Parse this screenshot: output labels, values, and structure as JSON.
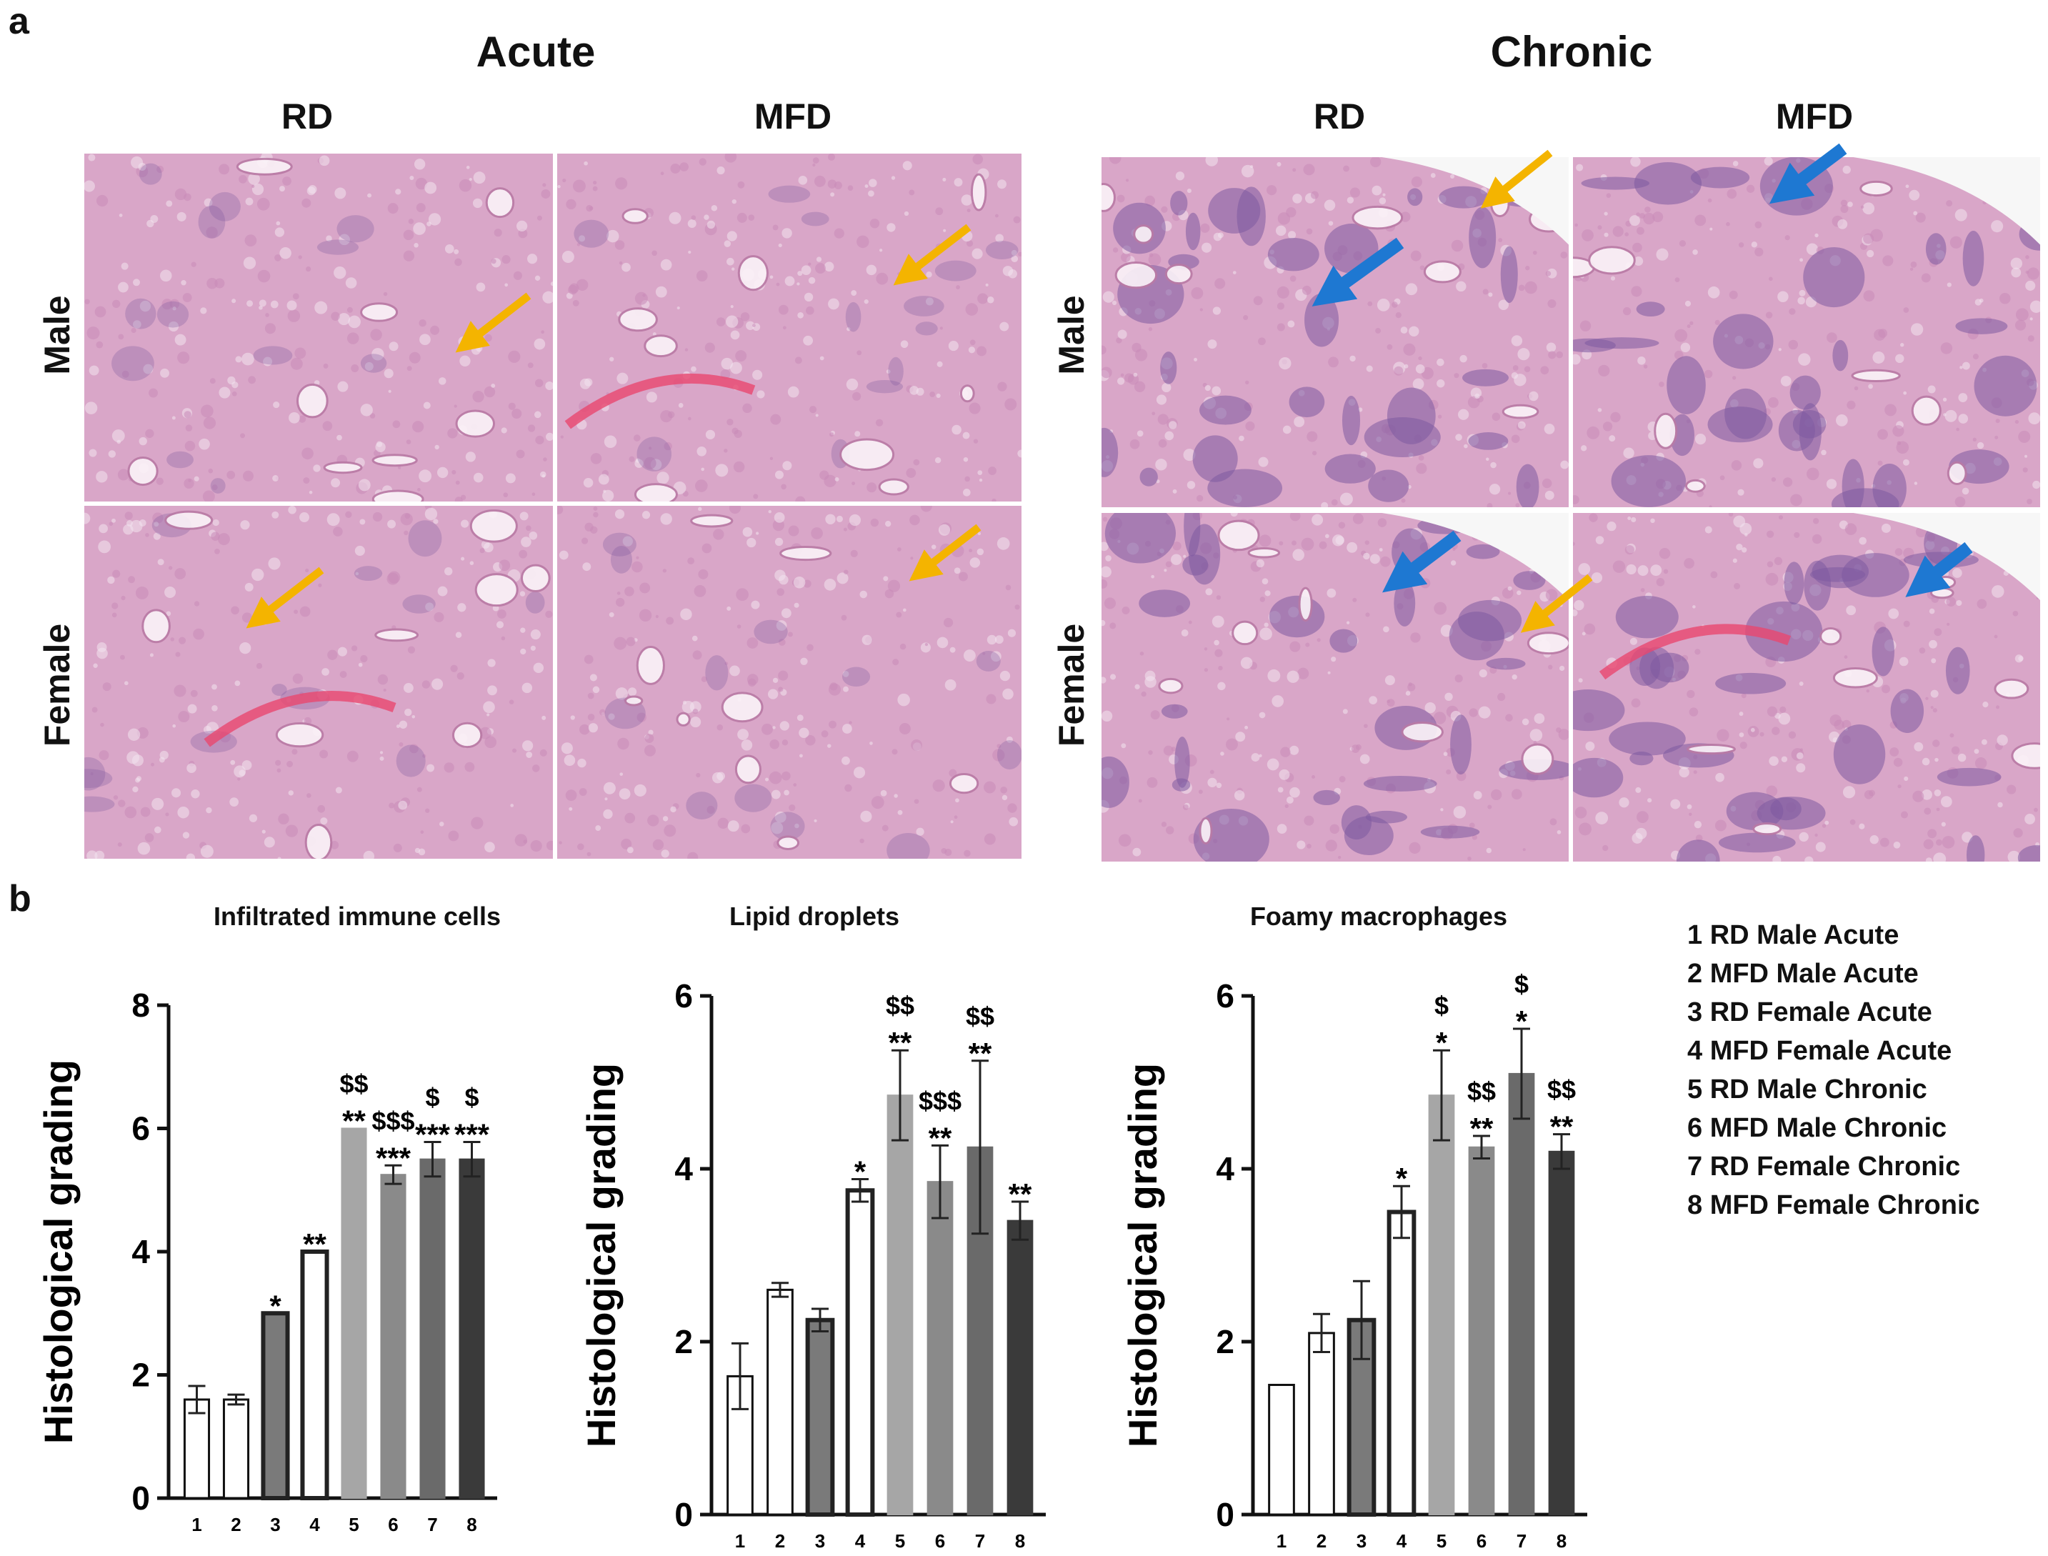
{
  "panel_a": {
    "label": "a",
    "groups": [
      {
        "title": "Acute",
        "columns": [
          "RD",
          "MFD"
        ]
      },
      {
        "title": "Chronic",
        "columns": [
          "RD",
          "MFD"
        ]
      }
    ],
    "rows": [
      "Male",
      "Female"
    ],
    "colors": {
      "tissue": "#d9a6c8",
      "nuclei": "#7d5aa0",
      "blood": "#e8476f",
      "orange_arrow": "#f4b400",
      "blue_arrow": "#1e78d2"
    }
  },
  "panel_b": {
    "label": "b",
    "legend": [
      "1 RD Male Acute",
      "2 MFD Male Acute",
      "3 RD Female Acute",
      "4 MFD Female Acute",
      "5 RD Male Chronic",
      "6 MFD Male Chronic",
      "7 RD Female Chronic",
      "8 MFD Female Chronic"
    ]
  },
  "chart_data": [
    {
      "type": "bar",
      "title": "Infiltrated immune cells",
      "ylabel": "Histological grading",
      "categories": [
        "1",
        "2",
        "3",
        "4",
        "5",
        "6",
        "7",
        "8"
      ],
      "values": [
        1.6,
        1.6,
        3.0,
        4.0,
        6.0,
        5.25,
        5.5,
        5.5
      ],
      "errors": [
        0.22,
        0.08,
        0,
        0,
        0,
        0.15,
        0.28,
        0.28
      ],
      "annotations": [
        "",
        "",
        "*",
        "**",
        "$$\n**",
        "$$$\n***",
        "$\n***",
        "$\n***"
      ],
      "ylim": [
        0,
        8
      ],
      "yticks": [
        0,
        2,
        4,
        6,
        8
      ],
      "bar_fills": [
        "#ffffff",
        "#ffffff",
        "#7a7a7a",
        "#ffffff",
        "#a6a6a6",
        "#8a8a8a",
        "#6a6a6a",
        "#3a3a3a"
      ],
      "bar_strokes": [
        "#111111",
        "#111111",
        "#111111",
        "#111111",
        "#a6a6a6",
        "#8a8a8a",
        "#6a6a6a",
        "#3a3a3a"
      ]
    },
    {
      "type": "bar",
      "title": "Lipid droplets",
      "ylabel": "Histological grading",
      "categories": [
        "1",
        "2",
        "3",
        "4",
        "5",
        "6",
        "7",
        "8"
      ],
      "values": [
        1.6,
        2.6,
        2.25,
        3.75,
        4.85,
        3.85,
        4.25,
        3.4
      ],
      "errors": [
        0.38,
        0.08,
        0.13,
        0.13,
        0.52,
        0.42,
        1.0,
        0.22
      ],
      "annotations": [
        "",
        "",
        "",
        "*",
        "$$\n**",
        "$$$\n**",
        "$$\n**",
        "**"
      ],
      "ylim": [
        0,
        6
      ],
      "yticks": [
        0,
        2,
        4,
        6
      ],
      "bar_fills": [
        "#ffffff",
        "#ffffff",
        "#7a7a7a",
        "#ffffff",
        "#a6a6a6",
        "#8a8a8a",
        "#6a6a6a",
        "#3a3a3a"
      ],
      "bar_strokes": [
        "#111111",
        "#111111",
        "#111111",
        "#111111",
        "#a6a6a6",
        "#8a8a8a",
        "#6a6a6a",
        "#3a3a3a"
      ]
    },
    {
      "type": "bar",
      "title": "Foamy macrophages",
      "ylabel": "Histological grading",
      "categories": [
        "1",
        "2",
        "3",
        "4",
        "5",
        "6",
        "7",
        "8"
      ],
      "values": [
        1.5,
        2.1,
        2.25,
        3.5,
        4.85,
        4.25,
        5.1,
        4.2
      ],
      "errors": [
        0,
        0.22,
        0.45,
        0.3,
        0.52,
        0.13,
        0.52,
        0.2
      ],
      "annotations": [
        "",
        "",
        "",
        "*",
        "$\n*",
        "$$\n**",
        "$\n*",
        "$$\n**"
      ],
      "ylim": [
        0,
        6
      ],
      "yticks": [
        0,
        2,
        4,
        6
      ],
      "bar_fills": [
        "#ffffff",
        "#ffffff",
        "#7a7a7a",
        "#ffffff",
        "#a6a6a6",
        "#8a8a8a",
        "#6a6a6a",
        "#3a3a3a"
      ],
      "bar_strokes": [
        "#111111",
        "#111111",
        "#111111",
        "#111111",
        "#a6a6a6",
        "#8a8a8a",
        "#6a6a6a",
        "#3a3a3a"
      ]
    }
  ]
}
